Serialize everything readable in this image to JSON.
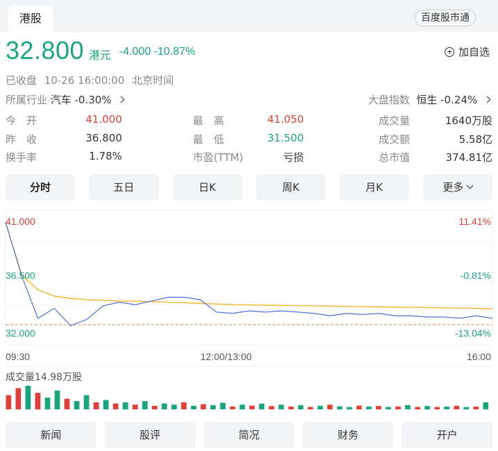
{
  "header": {
    "tab": "港股",
    "connect_button": "百度股市通"
  },
  "quote": {
    "price": "32.800",
    "currency": "港元",
    "change": "-4.000",
    "change_pct": "-10.87%",
    "add_watch": "加自选",
    "status": "已收盘",
    "datetime": "10-26 16:00:00",
    "timezone": "北京时间"
  },
  "industry": {
    "label": "所属行业",
    "name": "汽车",
    "pct": "-0.30%"
  },
  "market_index": {
    "label": "大盘指数",
    "name": "恒生",
    "pct": "-0.24%"
  },
  "stats": [
    [
      {
        "label": "今　开",
        "value": "41.000"
      },
      {
        "label": "最　高",
        "value": "41.050"
      },
      {
        "label": "成交量",
        "value": "1640万股"
      }
    ],
    [
      {
        "label": "昨　收",
        "value": "36.800"
      },
      {
        "label": "最　低",
        "value": "31.500"
      },
      {
        "label": "成交额",
        "value": "5.58亿"
      }
    ],
    [
      {
        "label": "换手率",
        "value": "1.78%"
      },
      {
        "label": "市盈(TTM)",
        "value": "亏损"
      },
      {
        "label": "总市值",
        "value": "374.81亿"
      }
    ]
  ],
  "periods": [
    "分时",
    "五日",
    "日K",
    "周K",
    "月K",
    "更多"
  ],
  "chart_data": {
    "type": "line",
    "y_left_ticks": [
      "41.000",
      "36.500",
      "32.000"
    ],
    "y_right_ticks": [
      "11.41%",
      "-0.81%",
      "-13.04%"
    ],
    "x_ticks": [
      "09:30",
      "12:00/13:00",
      "16:00"
    ],
    "prev_close": 36.8,
    "ylim": [
      32.0,
      41.0
    ],
    "price_series": [
      41.0,
      36.6,
      33.2,
      34.0,
      32.6,
      33.1,
      34.2,
      34.5,
      34.3,
      34.6,
      34.9,
      34.9,
      34.7,
      33.7,
      33.6,
      33.8,
      33.7,
      33.8,
      33.7,
      33.6,
      33.4,
      33.6,
      33.5,
      33.6,
      33.4,
      33.4,
      33.3,
      33.3,
      33.2,
      33.4,
      33.2
    ],
    "avg_series": [
      41.0,
      36.7,
      35.5,
      35.0,
      34.8,
      34.7,
      34.65,
      34.6,
      34.58,
      34.55,
      34.5,
      34.45,
      34.4,
      34.35,
      34.3,
      34.28,
      34.26,
      34.24,
      34.22,
      34.2,
      34.18,
      34.16,
      34.14,
      34.12,
      34.1,
      34.08,
      34.06,
      34.04,
      34.02,
      34.0,
      33.96
    ],
    "volume_label": "成交量14.98万股",
    "volume_bars": [
      {
        "v": 0.6,
        "c": "red"
      },
      {
        "v": 0.9,
        "c": "red"
      },
      {
        "v": 1.0,
        "c": "green"
      },
      {
        "v": 0.7,
        "c": "red"
      },
      {
        "v": 0.5,
        "c": "green"
      },
      {
        "v": 0.8,
        "c": "green"
      },
      {
        "v": 0.45,
        "c": "red"
      },
      {
        "v": 0.35,
        "c": "green"
      },
      {
        "v": 0.6,
        "c": "green"
      },
      {
        "v": 0.3,
        "c": "red"
      },
      {
        "v": 0.4,
        "c": "green"
      },
      {
        "v": 0.25,
        "c": "red"
      },
      {
        "v": 0.3,
        "c": "green"
      },
      {
        "v": 0.2,
        "c": "red"
      },
      {
        "v": 0.35,
        "c": "green"
      },
      {
        "v": 0.15,
        "c": "red"
      },
      {
        "v": 0.25,
        "c": "green"
      },
      {
        "v": 0.2,
        "c": "green"
      },
      {
        "v": 0.3,
        "c": "red"
      },
      {
        "v": 0.15,
        "c": "green"
      },
      {
        "v": 0.22,
        "c": "red"
      },
      {
        "v": 0.18,
        "c": "green"
      },
      {
        "v": 0.28,
        "c": "green"
      },
      {
        "v": 0.12,
        "c": "red"
      },
      {
        "v": 0.2,
        "c": "green"
      },
      {
        "v": 0.16,
        "c": "red"
      },
      {
        "v": 0.24,
        "c": "green"
      },
      {
        "v": 0.14,
        "c": "red"
      },
      {
        "v": 0.2,
        "c": "green"
      },
      {
        "v": 0.12,
        "c": "red"
      },
      {
        "v": 0.18,
        "c": "green"
      },
      {
        "v": 0.1,
        "c": "red"
      },
      {
        "v": 0.15,
        "c": "green"
      },
      {
        "v": 0.2,
        "c": "red"
      },
      {
        "v": 0.13,
        "c": "green"
      },
      {
        "v": 0.1,
        "c": "green"
      },
      {
        "v": 0.16,
        "c": "red"
      },
      {
        "v": 0.12,
        "c": "green"
      },
      {
        "v": 0.14,
        "c": "red"
      },
      {
        "v": 0.1,
        "c": "green"
      },
      {
        "v": 0.12,
        "c": "red"
      },
      {
        "v": 0.18,
        "c": "green"
      },
      {
        "v": 0.1,
        "c": "red"
      },
      {
        "v": 0.14,
        "c": "green"
      },
      {
        "v": 0.1,
        "c": "red"
      },
      {
        "v": 0.12,
        "c": "green"
      },
      {
        "v": 0.15,
        "c": "red"
      },
      {
        "v": 0.1,
        "c": "green"
      },
      {
        "v": 0.12,
        "c": "red"
      },
      {
        "v": 0.3,
        "c": "green"
      }
    ]
  },
  "bottom_nav": [
    "新闻",
    "股评",
    "简况",
    "财务",
    "开户"
  ],
  "colors": {
    "up": "#e0403a",
    "down": "#1aa67c",
    "price_line": "#4a6fd6",
    "avg_line": "#f0b31c",
    "prev_close": "#e07d4c"
  }
}
